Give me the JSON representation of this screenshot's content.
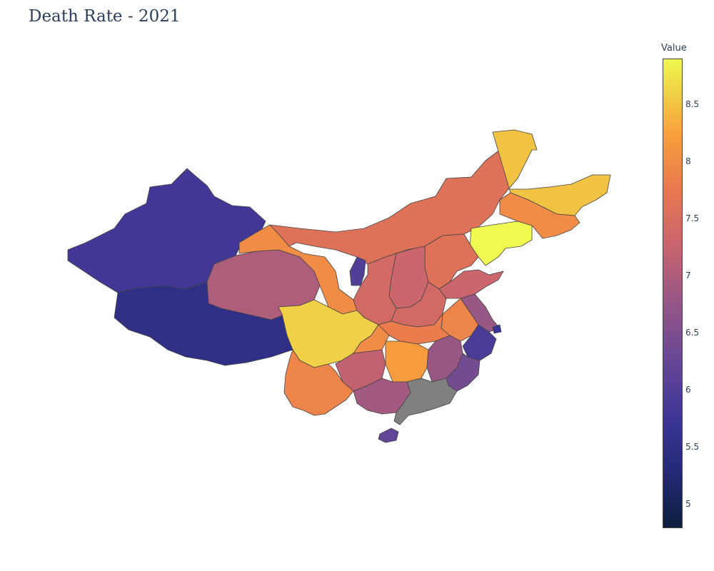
{
  "title": "Death Rate - 2021",
  "colorbar": {
    "title": "Value",
    "ticks": [
      "8.5",
      "8",
      "7.5",
      "7",
      "6.5",
      "6",
      "5.5",
      "5"
    ],
    "range": [
      4.8,
      8.9
    ],
    "colorscale": "plasma-like",
    "no_data_color": "#808080"
  },
  "chart_data": {
    "type": "choropleth",
    "title": "Death Rate - 2021",
    "colorbar_title": "Value",
    "range": [
      4.8,
      8.9
    ],
    "regions": [
      {
        "region": "Xinjiang",
        "value": 5.8
      },
      {
        "region": "Tibet",
        "value": 5.5
      },
      {
        "region": "Qinghai",
        "value": 7.0
      },
      {
        "region": "Gansu",
        "value": 8.0
      },
      {
        "region": "Inner Mongolia",
        "value": 7.6
      },
      {
        "region": "Heilongjiang",
        "value": 8.5
      },
      {
        "region": "Jilin",
        "value": 8.0
      },
      {
        "region": "Liaoning",
        "value": 8.9
      },
      {
        "region": "Beijing",
        "value": 5.4
      },
      {
        "region": "Tianjin",
        "value": 6.3
      },
      {
        "region": "Hebei",
        "value": 7.6
      },
      {
        "region": "Shanxi",
        "value": 7.3
      },
      {
        "region": "Shaanxi",
        "value": 7.4
      },
      {
        "region": "Ningxia",
        "value": 6.0
      },
      {
        "region": "Shandong",
        "value": 7.3
      },
      {
        "region": "Henan",
        "value": 7.4
      },
      {
        "region": "Jiangsu",
        "value": 6.8
      },
      {
        "region": "Shanghai",
        "value": 5.7
      },
      {
        "region": "Anhui",
        "value": 7.9
      },
      {
        "region": "Hubei",
        "value": 7.8
      },
      {
        "region": "Sichuan",
        "value": 8.6
      },
      {
        "region": "Chongqing",
        "value": 8.0
      },
      {
        "region": "Yunnan",
        "value": 7.9
      },
      {
        "region": "Guizhou",
        "value": 7.2
      },
      {
        "region": "Hunan",
        "value": 8.2
      },
      {
        "region": "Jiangxi",
        "value": 6.8
      },
      {
        "region": "Zhejiang",
        "value": 5.9
      },
      {
        "region": "Fujian",
        "value": 6.4
      },
      {
        "region": "Guangxi",
        "value": 6.9
      },
      {
        "region": "Guangdong",
        "value": null
      },
      {
        "region": "Hainan",
        "value": 6.2
      }
    ]
  }
}
